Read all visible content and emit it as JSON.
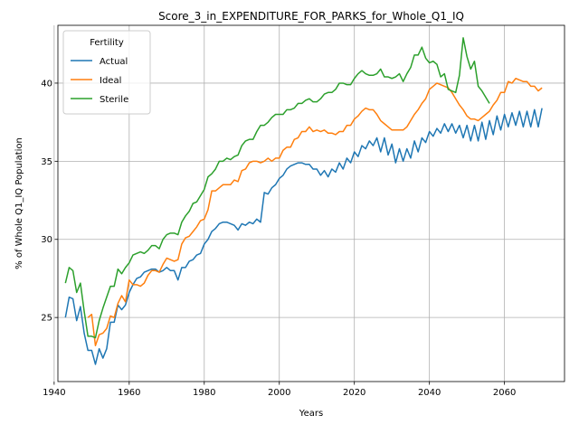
{
  "chart_data": {
    "type": "line",
    "title": "Score_3_in_EXPENDITURE_FOR_PARKS_for_Whole_Q1_IQ",
    "xlabel": "Years",
    "ylabel": "% of Whole Q1_IQ Population",
    "xlim": [
      1941,
      2076
    ],
    "ylim": [
      20.9,
      43.7
    ],
    "xticks": [
      1940,
      1960,
      1980,
      2000,
      2020,
      2040,
      2060
    ],
    "yticks": [
      25,
      30,
      35,
      40
    ],
    "grid": true,
    "legend": {
      "title": "Fertility",
      "placement": "upper-left"
    },
    "series": [
      {
        "name": "Actual",
        "color": "#1f77b4",
        "x": [
          1943,
          1944,
          1945,
          1946,
          1947,
          1948,
          1949,
          1950,
          1951,
          1952,
          1953,
          1954,
          1955,
          1956,
          1957,
          1958,
          1959,
          1960,
          1961,
          1962,
          1963,
          1964,
          1965,
          1966,
          1967,
          1968,
          1969,
          1970,
          1971,
          1972,
          1973,
          1974,
          1975,
          1976,
          1977,
          1978,
          1979,
          1980,
          1981,
          1982,
          1983,
          1984,
          1985,
          1986,
          1987,
          1988,
          1989,
          1990,
          1991,
          1992,
          1993,
          1994,
          1995,
          1996,
          1997,
          1998,
          1999,
          2000,
          2001,
          2002,
          2003,
          2004,
          2005,
          2006,
          2007,
          2008,
          2009,
          2010,
          2011,
          2012,
          2013,
          2014,
          2015,
          2016,
          2017,
          2018,
          2019,
          2020,
          2021,
          2022,
          2023,
          2024,
          2025,
          2026,
          2027,
          2028,
          2029,
          2030,
          2031,
          2032,
          2033,
          2034,
          2035,
          2036,
          2037,
          2038,
          2039,
          2040,
          2041,
          2042,
          2043,
          2044,
          2045,
          2046,
          2047,
          2048,
          2049,
          2050,
          2051,
          2052,
          2053,
          2054,
          2055,
          2056,
          2057,
          2058,
          2059,
          2060,
          2061,
          2062,
          2063,
          2064,
          2065,
          2066,
          2067,
          2068,
          2069,
          2070
        ],
        "values": [
          25.0,
          26.3,
          26.2,
          24.8,
          25.7,
          24.0,
          22.9,
          22.9,
          22.0,
          23.0,
          22.4,
          23.0,
          24.7,
          24.7,
          25.8,
          25.5,
          25.8,
          26.6,
          27.1,
          27.5,
          27.6,
          27.9,
          28.0,
          28.1,
          28.1,
          27.9,
          28.0,
          28.2,
          28.0,
          28.0,
          27.4,
          28.2,
          28.2,
          28.6,
          28.7,
          29.0,
          29.1,
          29.7,
          30.0,
          30.5,
          30.7,
          31.0,
          31.1,
          31.1,
          31.0,
          30.9,
          30.6,
          31.0,
          30.9,
          31.1,
          31.0,
          31.3,
          31.1,
          33.0,
          32.9,
          33.3,
          33.5,
          33.9,
          34.1,
          34.5,
          34.7,
          34.8,
          34.9,
          34.9,
          34.8,
          34.8,
          34.5,
          34.5,
          34.1,
          34.4,
          34.0,
          34.5,
          34.3,
          34.9,
          34.5,
          35.2,
          34.9,
          35.6,
          35.3,
          36.0,
          35.8,
          36.3,
          36.0,
          36.5,
          35.6,
          36.5,
          35.4,
          36.1,
          34.9,
          35.8,
          35.0,
          35.8,
          35.2,
          36.3,
          35.6,
          36.5,
          36.2,
          36.9,
          36.6,
          37.1,
          36.8,
          37.4,
          36.9,
          37.4,
          36.8,
          37.3,
          36.5,
          37.3,
          36.3,
          37.3,
          36.3,
          37.5,
          36.4,
          37.6,
          36.7,
          37.9,
          37.0,
          38.0,
          37.2,
          38.1,
          37.3,
          38.2,
          37.2,
          38.2,
          37.2,
          38.3,
          37.2,
          38.4
        ]
      },
      {
        "name": "Ideal",
        "color": "#ff7f0e",
        "x": [
          1949,
          1950,
          1951,
          1952,
          1953,
          1954,
          1955,
          1956,
          1957,
          1958,
          1959,
          1960,
          1961,
          1962,
          1963,
          1964,
          1965,
          1966,
          1967,
          1968,
          1969,
          1970,
          1971,
          1972,
          1973,
          1974,
          1975,
          1976,
          1977,
          1978,
          1979,
          1980,
          1981,
          1982,
          1983,
          1984,
          1985,
          1986,
          1987,
          1988,
          1989,
          1990,
          1991,
          1992,
          1993,
          1994,
          1995,
          1996,
          1997,
          1998,
          1999,
          2000,
          2001,
          2002,
          2003,
          2004,
          2005,
          2006,
          2007,
          2008,
          2009,
          2010,
          2011,
          2012,
          2013,
          2014,
          2015,
          2016,
          2017,
          2018,
          2019,
          2020,
          2021,
          2022,
          2023,
          2024,
          2025,
          2026,
          2027,
          2028,
          2029,
          2030,
          2031,
          2032,
          2033,
          2034,
          2035,
          2036,
          2037,
          2038,
          2039,
          2040,
          2041,
          2042,
          2043,
          2044,
          2045,
          2046,
          2047,
          2048,
          2049,
          2050,
          2051,
          2052,
          2053,
          2054,
          2055,
          2056,
          2057,
          2058,
          2059,
          2060,
          2061,
          2062,
          2063,
          2064,
          2065,
          2066,
          2067,
          2068,
          2069,
          2070
        ],
        "values": [
          25.0,
          25.2,
          23.2,
          23.9,
          24.0,
          24.3,
          25.1,
          25.0,
          25.9,
          26.4,
          26.0,
          27.4,
          27.1,
          27.1,
          27.0,
          27.2,
          27.7,
          28.0,
          28.0,
          27.9,
          28.4,
          28.8,
          28.7,
          28.6,
          28.7,
          29.7,
          30.1,
          30.2,
          30.5,
          30.8,
          31.2,
          31.3,
          31.9,
          33.1,
          33.1,
          33.3,
          33.5,
          33.5,
          33.5,
          33.8,
          33.7,
          34.4,
          34.5,
          34.9,
          35.0,
          35.0,
          34.9,
          35.0,
          35.2,
          35.0,
          35.2,
          35.2,
          35.7,
          35.9,
          35.9,
          36.4,
          36.5,
          36.9,
          36.9,
          37.2,
          36.9,
          37.0,
          36.9,
          37.0,
          36.8,
          36.8,
          36.7,
          36.9,
          36.9,
          37.3,
          37.3,
          37.7,
          37.9,
          38.2,
          38.4,
          38.3,
          38.3,
          38.0,
          37.6,
          37.4,
          37.2,
          37.0,
          37.0,
          37.0,
          37.0,
          37.2,
          37.6,
          38.0,
          38.3,
          38.7,
          39.0,
          39.6,
          39.8,
          40.0,
          39.9,
          39.8,
          39.7,
          39.4,
          39.0,
          38.6,
          38.3,
          37.9,
          37.7,
          37.7,
          37.6,
          37.8,
          38.0,
          38.2,
          38.6,
          38.9,
          39.4,
          39.4,
          40.1,
          40.0,
          40.3,
          40.2,
          40.1,
          40.1,
          39.8,
          39.8,
          39.5,
          39.7
        ]
      },
      {
        "name": "Sterile",
        "color": "#2ca02c",
        "x": [
          1943,
          1944,
          1945,
          1946,
          1947,
          1948,
          1949,
          1950,
          1951,
          1952,
          1953,
          1954,
          1955,
          1956,
          1957,
          1958,
          1959,
          1960,
          1961,
          1962,
          1963,
          1964,
          1965,
          1966,
          1967,
          1968,
          1969,
          1970,
          1971,
          1972,
          1973,
          1974,
          1975,
          1976,
          1977,
          1978,
          1979,
          1980,
          1981,
          1982,
          1983,
          1984,
          1985,
          1986,
          1987,
          1988,
          1989,
          1990,
          1991,
          1992,
          1993,
          1994,
          1995,
          1996,
          1997,
          1998,
          1999,
          2000,
          2001,
          2002,
          2003,
          2004,
          2005,
          2006,
          2007,
          2008,
          2009,
          2010,
          2011,
          2012,
          2013,
          2014,
          2015,
          2016,
          2017,
          2018,
          2019,
          2020,
          2021,
          2022,
          2023,
          2024,
          2025,
          2026,
          2027,
          2028,
          2029,
          2030,
          2031,
          2032,
          2033,
          2034,
          2035,
          2036,
          2037,
          2038,
          2039,
          2040,
          2041,
          2042,
          2043,
          2044,
          2045,
          2046,
          2047,
          2048,
          2049,
          2050,
          2051,
          2052,
          2053,
          2054,
          2055,
          2056
        ],
        "values": [
          27.2,
          28.2,
          28.0,
          26.6,
          27.2,
          25.4,
          23.8,
          23.8,
          23.7,
          24.8,
          25.6,
          26.3,
          27.0,
          27.0,
          28.1,
          27.8,
          28.2,
          28.5,
          29.0,
          29.1,
          29.2,
          29.1,
          29.3,
          29.6,
          29.6,
          29.4,
          30.0,
          30.3,
          30.4,
          30.4,
          30.3,
          31.1,
          31.5,
          31.8,
          32.3,
          32.4,
          32.8,
          33.2,
          34.0,
          34.2,
          34.5,
          35.0,
          35.0,
          35.2,
          35.1,
          35.3,
          35.4,
          36.0,
          36.3,
          36.4,
          36.4,
          36.9,
          37.3,
          37.3,
          37.5,
          37.8,
          38.0,
          38.0,
          38.0,
          38.3,
          38.3,
          38.4,
          38.7,
          38.7,
          38.9,
          39.0,
          38.8,
          38.8,
          39.0,
          39.3,
          39.4,
          39.4,
          39.6,
          40.0,
          40.0,
          39.9,
          39.9,
          40.3,
          40.6,
          40.8,
          40.6,
          40.5,
          40.5,
          40.6,
          40.9,
          40.4,
          40.4,
          40.3,
          40.4,
          40.6,
          40.1,
          40.6,
          41.0,
          41.8,
          41.8,
          42.3,
          41.6,
          41.3,
          41.4,
          41.2,
          40.4,
          40.6,
          39.6,
          39.5,
          39.4,
          40.5,
          42.9,
          41.7,
          40.9,
          41.4,
          39.8,
          39.5,
          39.1,
          38.7
        ]
      }
    ]
  }
}
